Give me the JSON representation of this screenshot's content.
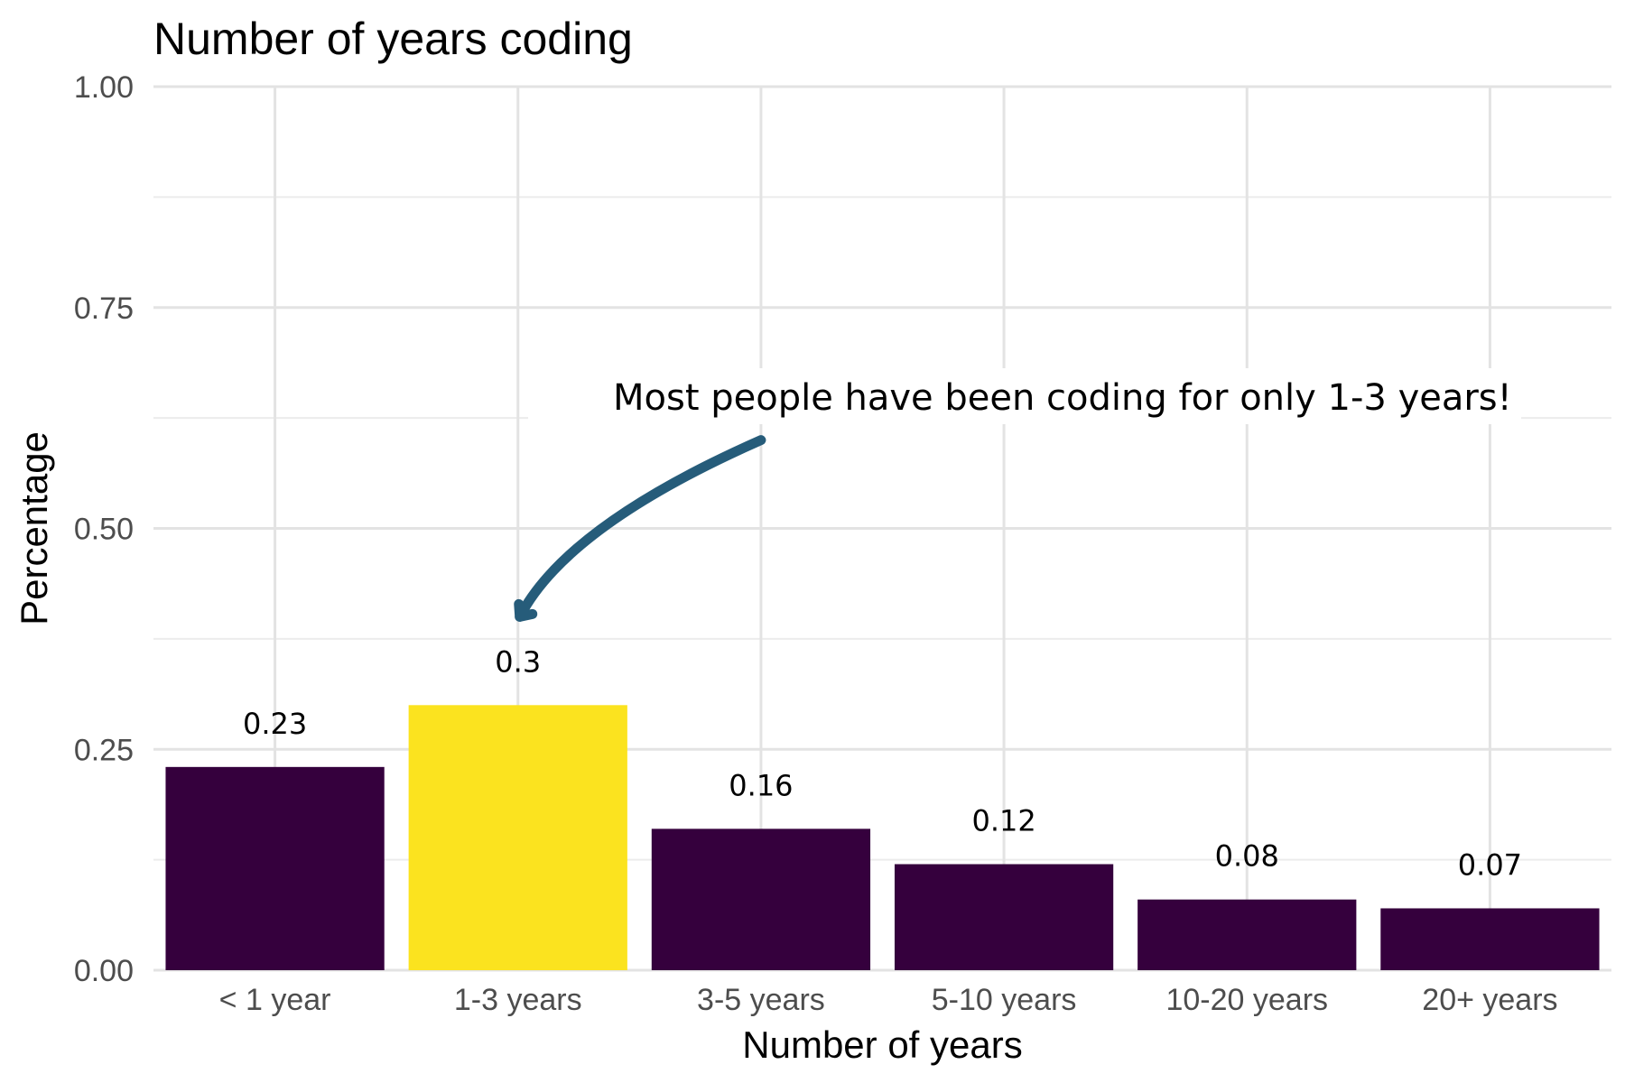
{
  "chart_data": {
    "type": "bar",
    "title": "Number of years coding",
    "xlabel": "Number of years",
    "ylabel": "Percentage",
    "categories": [
      "< 1 year",
      "1-3 years",
      "3-5 years",
      "5-10 years",
      "10-20 years",
      "20+ years"
    ],
    "values": [
      0.23,
      0.3,
      0.16,
      0.12,
      0.08,
      0.07
    ],
    "data_labels": [
      "0.23",
      "0.3",
      "0.16",
      "0.12",
      "0.08",
      "0.07"
    ],
    "ylim": [
      0,
      1
    ],
    "yticks": [
      0,
      0.25,
      0.5,
      0.75,
      1
    ],
    "ytick_labels": [
      "0.00",
      "0.25",
      "0.50",
      "0.75",
      "1.00"
    ],
    "grid": true,
    "legend": "none",
    "highlight_category": "1-3 years",
    "colors": {
      "bar": "#35003d",
      "highlight": "#fbe31f",
      "arrow": "#265c7a"
    },
    "annotation": {
      "text": "Most people have been coding for only 1-3 years!",
      "target_category": "1-3 years",
      "target_value": 0.4
    }
  }
}
